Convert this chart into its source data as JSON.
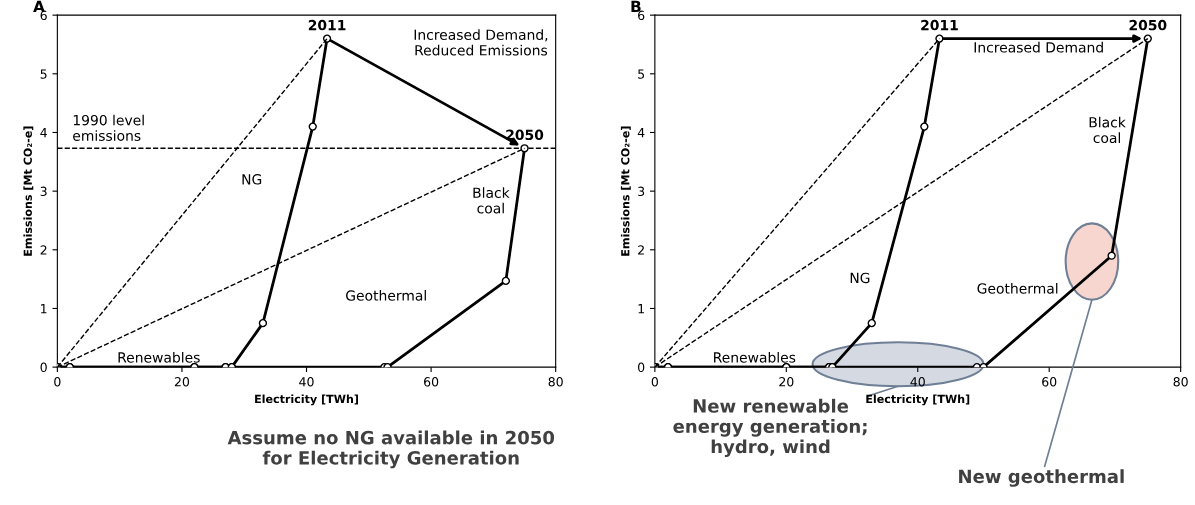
{
  "chart_data": [
    {
      "type": "line",
      "title": "A",
      "xlabel": "Electricity [TWh]",
      "ylabel": "Emissions [Mt CO₂-e]",
      "xlim": [
        0,
        80
      ],
      "xticks": [
        0,
        20,
        40,
        60,
        80
      ],
      "ylim": [
        0,
        6
      ],
      "yticks": [
        0,
        1,
        2,
        3,
        4,
        5,
        6
      ],
      "grid": false,
      "legend": false,
      "marker": "circle",
      "line_style": "solid",
      "series": [
        {
          "color": "#000000",
          "x": [
            0,
            2,
            22,
            27,
            28,
            33,
            41,
            43.3
          ],
          "values": [
            0,
            0,
            0,
            0,
            0,
            0.75,
            4.1,
            5.6
          ]
        },
        {
          "color": "#000000",
          "x": [
            0,
            2,
            22,
            27,
            28,
            52.5,
            53,
            72,
            75
          ],
          "values": [
            0,
            0,
            0,
            0,
            0,
            0,
            0,
            1.47,
            3.73
          ]
        },
        {
          "color": "#000000",
          "x": [
            0,
            43.3
          ],
          "values": [
            0,
            5.6
          ],
          "line_style": "dashed",
          "marker": "none"
        },
        {
          "color": "#000000",
          "x": [
            0,
            75
          ],
          "values": [
            0,
            3.73
          ],
          "line_style": "dashed",
          "marker": "none"
        }
      ],
      "ref_lines": [
        {
          "axis": "y",
          "value": 3.73,
          "label": "1990 level\nemissions",
          "line_style": "dashed",
          "color": "#000000"
        }
      ],
      "annotations": [
        "2011",
        "2050",
        "Increased Demand,\nReduced Emissions",
        "NG",
        "Black\ncoal",
        "Geothermal",
        "Renewables",
        "Assume no NG available in 2050\nfor Electricity Generation"
      ]
    },
    {
      "type": "line",
      "title": "B",
      "xlabel": "Electricity [TWh]",
      "ylabel": "Emissions [Mt CO₂-e]",
      "xlim": [
        0,
        80
      ],
      "xticks": [
        0,
        20,
        40,
        60,
        80
      ],
      "ylim": [
        0,
        6
      ],
      "yticks": [
        0,
        1,
        2,
        3,
        4,
        5,
        6
      ],
      "grid": false,
      "legend": false,
      "marker": "circle",
      "line_style": "solid",
      "series": [
        {
          "color": "#000000",
          "x": [
            0,
            2,
            20,
            26.5,
            27,
            33,
            41,
            43.3
          ],
          "values": [
            0,
            0,
            0,
            0,
            0,
            0.75,
            4.1,
            5.6
          ]
        },
        {
          "color": "#000000",
          "x": [
            0,
            2,
            20,
            26.5,
            27,
            49,
            50,
            69.5,
            75
          ],
          "values": [
            0,
            0,
            0,
            0,
            0,
            0,
            0,
            1.9,
            5.6
          ]
        },
        {
          "color": "#000000",
          "x": [
            0,
            43.3
          ],
          "values": [
            0,
            5.6
          ],
          "line_style": "dashed",
          "marker": "none"
        },
        {
          "color": "#000000",
          "x": [
            0,
            75
          ],
          "values": [
            0,
            5.6
          ],
          "line_style": "dashed",
          "marker": "none"
        }
      ],
      "annotations": [
        "2011",
        "2050",
        "Increased Demand",
        "NG",
        "Black\ncoal",
        "Geothermal",
        "Renewables",
        "New renewable\nenergy generation;\nhydro, wind",
        "New geothermal"
      ]
    }
  ]
}
